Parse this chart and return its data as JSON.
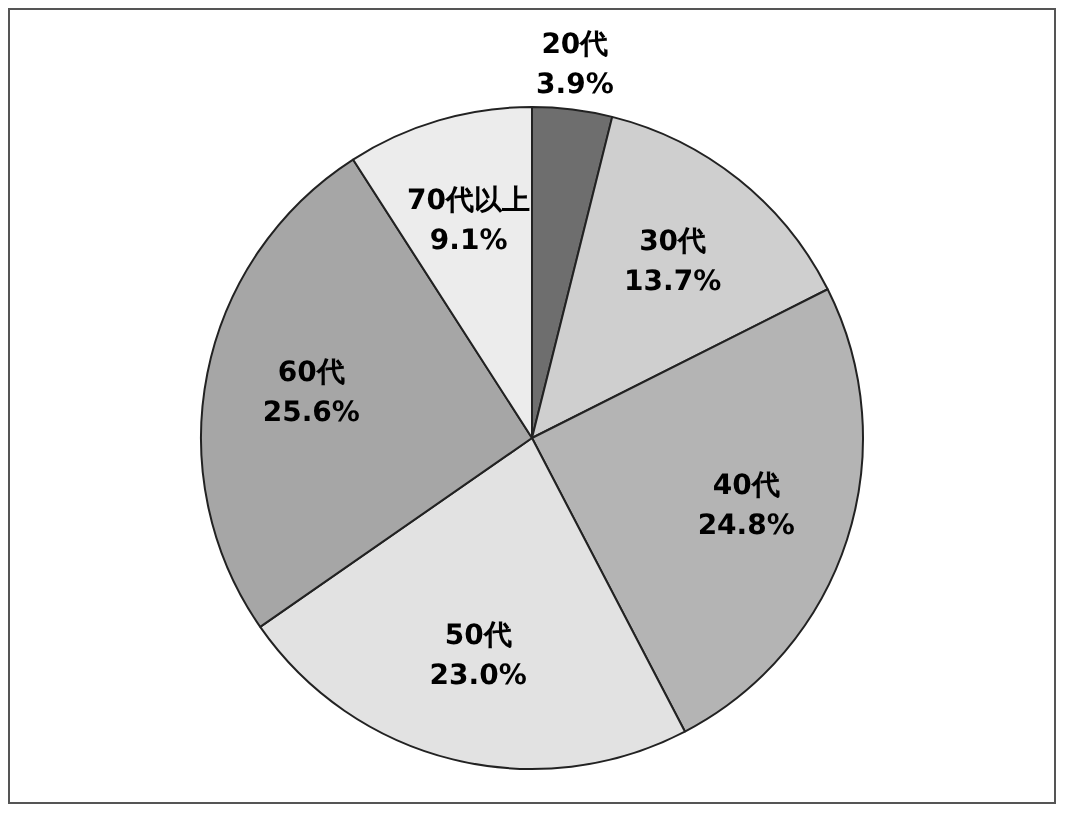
{
  "chart_data": {
    "type": "pie",
    "categories": [
      "20代",
      "30代",
      "40代",
      "50代",
      "60代",
      "70代以上"
    ],
    "values": [
      3.9,
      13.7,
      24.8,
      23.0,
      25.6,
      9.1
    ],
    "value_labels": [
      "3.9%",
      "13.7%",
      "24.8%",
      "23.0%",
      "25.6%",
      "9.1%"
    ],
    "colors": [
      "#6e6e6e",
      "#cfcfcf",
      "#b4b4b4",
      "#e2e2e2",
      "#a6a6a6",
      "#ececec"
    ],
    "legend": false
  }
}
